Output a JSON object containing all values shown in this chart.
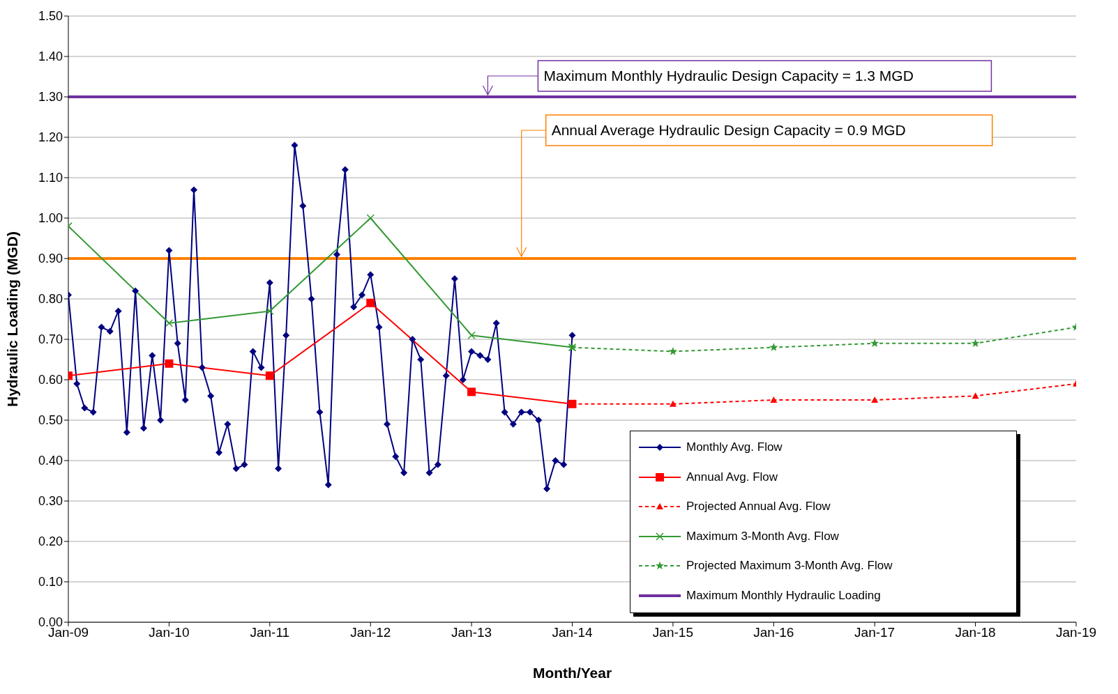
{
  "chart_data": {
    "type": "line",
    "xlabel": "Month/Year",
    "ylabel": "Hydraulic Loading (MGD)",
    "xlim": [
      "2009-01",
      "2019-01"
    ],
    "xticks": [
      {
        "value": "2009-01",
        "label": "Jan-09"
      },
      {
        "value": "2010-01",
        "label": "Jan-10"
      },
      {
        "value": "2011-01",
        "label": "Jan-11"
      },
      {
        "value": "2012-01",
        "label": "Jan-12"
      },
      {
        "value": "2013-01",
        "label": "Jan-13"
      },
      {
        "value": "2014-01",
        "label": "Jan-14"
      },
      {
        "value": "2015-01",
        "label": "Jan-15"
      },
      {
        "value": "2016-01",
        "label": "Jan-16"
      },
      {
        "value": "2017-01",
        "label": "Jan-17"
      },
      {
        "value": "2018-01",
        "label": "Jan-18"
      },
      {
        "value": "2019-01",
        "label": "Jan-19"
      }
    ],
    "ylim": [
      0,
      1.5
    ],
    "yticks": [
      {
        "value": 0,
        "label": "0.00"
      },
      {
        "value": 0.1,
        "label": "0.10"
      },
      {
        "value": 0.2,
        "label": "0.20"
      },
      {
        "value": 0.3,
        "label": "0.30"
      },
      {
        "value": 0.4,
        "label": "0.40"
      },
      {
        "value": 0.5,
        "label": "0.50"
      },
      {
        "value": 0.6,
        "label": "0.60"
      },
      {
        "value": 0.7,
        "label": "0.70"
      },
      {
        "value": 0.8,
        "label": "0.80"
      },
      {
        "value": 0.9,
        "label": "0.90"
      },
      {
        "value": 1.0,
        "label": "1.00"
      },
      {
        "value": 1.1,
        "label": "1.10"
      },
      {
        "value": 1.2,
        "label": "1.20"
      },
      {
        "value": 1.3,
        "label": "1.30"
      },
      {
        "value": 1.4,
        "label": "1.40"
      },
      {
        "value": 1.5,
        "label": "1.50"
      }
    ],
    "grid": "y",
    "legend": "bottom right",
    "series": [
      {
        "name": "Monthly Avg. Flow",
        "color": "#000080",
        "marker": "diamond",
        "line_style": "solid",
        "x": [
          "2009-01",
          "2009-02",
          "2009-03",
          "2009-04",
          "2009-05",
          "2009-06",
          "2009-07",
          "2009-08",
          "2009-09",
          "2009-10",
          "2009-11",
          "2009-12",
          "2010-01",
          "2010-02",
          "2010-03",
          "2010-04",
          "2010-05",
          "2010-06",
          "2010-07",
          "2010-08",
          "2010-09",
          "2010-10",
          "2010-11",
          "2010-12",
          "2011-01",
          "2011-02",
          "2011-03",
          "2011-04",
          "2011-05",
          "2011-06",
          "2011-07",
          "2011-08",
          "2011-09",
          "2011-10",
          "2011-11",
          "2011-12",
          "2012-01",
          "2012-02",
          "2012-03",
          "2012-04",
          "2012-05",
          "2012-06",
          "2012-07",
          "2012-08",
          "2012-09",
          "2012-10",
          "2012-11",
          "2012-12",
          "2013-01",
          "2013-02",
          "2013-03",
          "2013-04",
          "2013-05",
          "2013-06",
          "2013-07",
          "2013-08",
          "2013-09",
          "2013-10",
          "2013-11",
          "2013-12",
          "2014-01"
        ],
        "values": [
          0.81,
          0.59,
          0.53,
          0.52,
          0.73,
          0.72,
          0.77,
          0.47,
          0.82,
          0.48,
          0.66,
          0.5,
          0.92,
          0.69,
          0.55,
          1.07,
          0.63,
          0.56,
          0.42,
          0.49,
          0.38,
          0.39,
          0.67,
          0.63,
          0.84,
          0.38,
          0.71,
          1.18,
          1.03,
          0.8,
          0.52,
          0.34,
          0.91,
          1.12,
          0.78,
          0.81,
          0.86,
          0.73,
          0.49,
          0.41,
          0.37,
          0.7,
          0.65,
          0.37,
          0.39,
          0.61,
          0.85,
          0.6,
          0.67,
          0.66,
          0.65,
          0.74,
          0.52,
          0.49,
          0.52,
          0.52,
          0.5,
          0.33,
          0.4,
          0.39,
          0.71
        ]
      },
      {
        "name": "Annual Avg. Flow",
        "color": "#ff0000",
        "marker": "square",
        "line_style": "solid",
        "x": [
          "2009-01",
          "2010-01",
          "2011-01",
          "2012-01",
          "2013-01",
          "2014-01"
        ],
        "values": [
          0.61,
          0.64,
          0.61,
          0.79,
          0.57,
          0.54
        ]
      },
      {
        "name": "Projected Annual Avg. Flow",
        "color": "#ff0000",
        "marker": "triangle",
        "line_style": "dashed",
        "x": [
          "2014-01",
          "2015-01",
          "2016-01",
          "2017-01",
          "2018-01",
          "2019-01"
        ],
        "values": [
          0.54,
          0.54,
          0.55,
          0.55,
          0.56,
          0.59
        ]
      },
      {
        "name": "Maximum 3-Month Avg. Flow",
        "color": "#339933",
        "marker": "cross",
        "line_style": "solid",
        "x": [
          "2009-01",
          "2010-01",
          "2011-01",
          "2012-01",
          "2013-01",
          "2014-01"
        ],
        "values": [
          0.98,
          0.74,
          0.77,
          1.0,
          0.71,
          0.68
        ]
      },
      {
        "name": "Projected Maximum 3-Month Avg. Flow",
        "color": "#339933",
        "marker": "star",
        "line_style": "dashed",
        "x": [
          "2014-01",
          "2015-01",
          "2016-01",
          "2017-01",
          "2018-01",
          "2019-01"
        ],
        "values": [
          0.68,
          0.67,
          0.68,
          0.69,
          0.69,
          0.73
        ]
      },
      {
        "name": "Maximum Monthly Hydraulic Loading",
        "color": "#7030a0",
        "marker": "none",
        "line_style": "solid",
        "x": [
          "2009-01",
          "2019-01"
        ],
        "values": [
          1.3,
          1.3
        ]
      }
    ],
    "ref_lines": [
      {
        "axis": "y",
        "value": 0.9,
        "color": "#ff7f00"
      }
    ],
    "annotations": [
      {
        "text": "Maximum Monthly Hydraulic Design Capacity = 1.3 MGD",
        "x": "2013-03",
        "y": 1.3
      },
      {
        "text": "Annual Average Hydraulic Design Capacity = 0.9 MGD",
        "x": "2013-07",
        "y": 0.9
      }
    ]
  }
}
